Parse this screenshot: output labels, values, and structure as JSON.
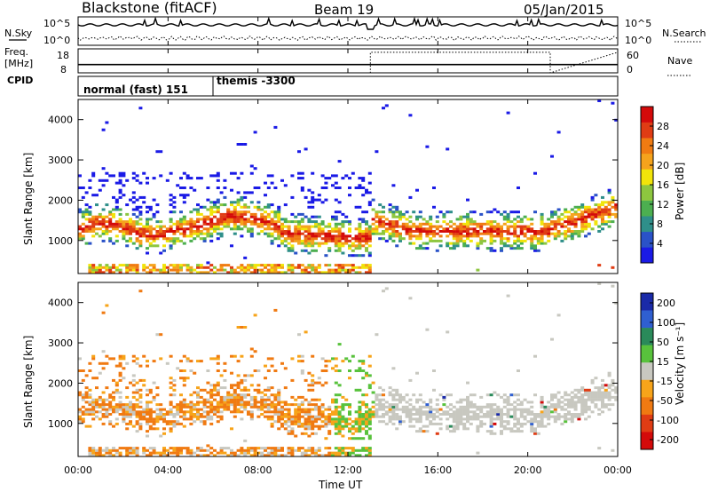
{
  "header": {
    "station": "Blackstone (fitACF)",
    "beam": "Beam 19",
    "date": "05/Jan/2015"
  },
  "side_labels": {
    "nsky": "N.Sky",
    "freq_line1": "Freq.",
    "freq_line2": "[MHz]",
    "cpid": "CPID",
    "nsearch": "N.Search",
    "nave": "Nave"
  },
  "chart_data": [
    {
      "type": "line",
      "name": "noise_panel",
      "series": [
        {
          "name": "N.Sky"
        },
        {
          "name": "N.Search"
        }
      ],
      "yticks_left": [
        "10^5",
        "10^0"
      ],
      "yticks_right": [
        "10^5",
        "10^0"
      ],
      "xlim_hours": [
        0,
        24
      ]
    },
    {
      "type": "line",
      "name": "freq_nave_panel",
      "series": [
        {
          "name": "Freq.",
          "x": [
            0,
            24
          ],
          "y": [
            10.5,
            10.5
          ]
        },
        {
          "name": "Nave",
          "x": [
            0,
            13,
            13,
            21,
            21,
            24
          ],
          "y": [
            0,
            0,
            60,
            60,
            0,
            60
          ]
        }
      ],
      "yticks_left": [
        "18",
        "8"
      ],
      "yticks_right": [
        "60",
        "0"
      ],
      "xlim_hours": [
        0,
        24
      ]
    },
    {
      "type": "table",
      "name": "cpid_panel",
      "segments": [
        {
          "label": "normal (fast) 151",
          "start_hour": 0,
          "end_hour": 6
        },
        {
          "label": "themis -3300",
          "start_hour": 6,
          "end_hour": 24
        }
      ]
    },
    {
      "type": "heatmap",
      "name": "power",
      "ylabel": "Slant Range [km]",
      "ylim": [
        180,
        4500
      ],
      "yticks": [
        1000,
        2000,
        3000,
        4000
      ],
      "xlim_hours": [
        0,
        24
      ],
      "colorbar": {
        "label": "Power [dB]",
        "ticks": [
          4,
          8,
          12,
          16,
          20,
          24,
          28
        ],
        "range": [
          0,
          32
        ],
        "colors": [
          "#1a1ae6",
          "#2a52c8",
          "#2f8f8a",
          "#4caf50",
          "#8dc63f",
          "#f1e40a",
          "#f5a31c",
          "#f07b12",
          "#e03c14",
          "#d40a0a"
        ]
      }
    },
    {
      "type": "heatmap",
      "name": "velocity",
      "ylabel": "Slant Range [km]",
      "xlabel": "Time UT",
      "ylim": [
        180,
        4500
      ],
      "yticks": [
        1000,
        2000,
        3000,
        4000
      ],
      "xlim_hours": [
        0,
        24
      ],
      "xticks": [
        "00:00",
        "04:00",
        "08:00",
        "12:00",
        "16:00",
        "20:00",
        "00:00"
      ],
      "colorbar": {
        "label": "Velocity [m s⁻¹]",
        "ticks": [
          "200",
          "100",
          "50",
          "15",
          "-15",
          "-50",
          "-100",
          "-200"
        ],
        "colors": [
          "#1a2aa8",
          "#2f5fd0",
          "#2a8a5a",
          "#58c23c",
          "#c8c8c0",
          "#f7a41a",
          "#f07a12",
          "#e03c14",
          "#d40a0a"
        ]
      }
    }
  ]
}
